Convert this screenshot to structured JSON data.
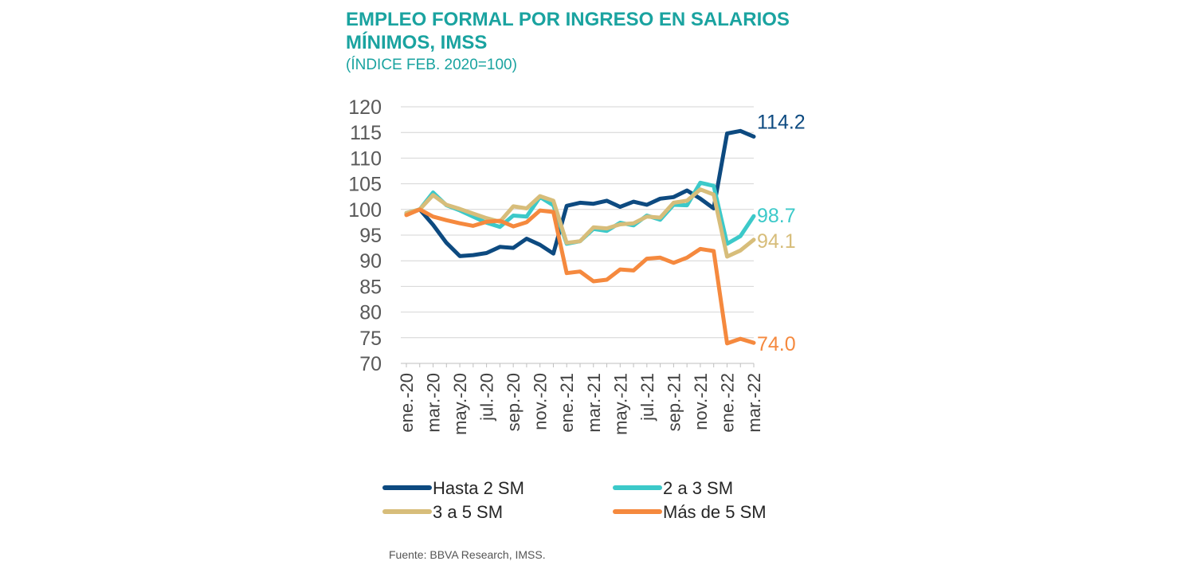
{
  "title": "EMPLEO FORMAL POR INGRESO EN SALARIOS MÍNIMOS, IMSS",
  "subtitle": "(ÍNDICE FEB. 2020=100)",
  "source": "Fuente: BBVA Research, IMSS.",
  "chart_data": {
    "type": "line",
    "title": "EMPLEO FORMAL POR INGRESO EN SALARIOS MÍNIMOS, IMSS",
    "subtitle": "(ÍNDICE FEB. 2020=100)",
    "ylim": [
      70,
      120
    ],
    "yticks": [
      "70",
      "75",
      "80",
      "85",
      "90",
      "95",
      "100",
      "105",
      "110",
      "115",
      "120"
    ],
    "grid": "horizontal",
    "legend_position": "bottom",
    "x": [
      "ene.-20",
      "feb.-20",
      "mar.-20",
      "abr.-20",
      "may.-20",
      "jun.-20",
      "jul.-20",
      "ago.-20",
      "sep.-20",
      "oct.-20",
      "nov.-20",
      "dic.-20",
      "ene.-21",
      "feb.-21",
      "mar.-21",
      "abr.-21",
      "may.-21",
      "jun.-21",
      "jul.-21",
      "ago.-21",
      "sep.-21",
      "oct.-21",
      "nov.-21",
      "dic.-21",
      "ene.-22",
      "feb.-22",
      "mar.-22"
    ],
    "xtick_labels": [
      "ene.-20",
      "mar.-20",
      "may.-20",
      "jul.-20",
      "sep.-20",
      "nov.-20",
      "ene.-21",
      "mar.-21",
      "may.-21",
      "jul.-21",
      "sep.-21",
      "nov.-21",
      "ene.-22",
      "mar.-22"
    ],
    "series": [
      {
        "name": "Hasta 2 SM",
        "color": "#0d4a80",
        "end_label": "114.2",
        "values": [
          99.2,
          100,
          97.0,
          93.5,
          90.9,
          91.1,
          91.5,
          92.7,
          92.5,
          94.3,
          93.1,
          91.4,
          100.7,
          101.3,
          101.1,
          101.7,
          100.5,
          101.5,
          100.9,
          102.1,
          102.4,
          103.7,
          102.1,
          100.2,
          114.8,
          115.3,
          114.2
        ]
      },
      {
        "name": "2 a 3 SM",
        "color": "#3cc9c9",
        "end_label": "98.7",
        "values": [
          99.3,
          100,
          103.3,
          100.8,
          99.8,
          98.6,
          97.4,
          96.6,
          98.8,
          98.6,
          102.4,
          100.8,
          93.3,
          93.8,
          96.2,
          95.8,
          97.4,
          96.9,
          98.8,
          98.0,
          100.9,
          100.8,
          105.2,
          104.6,
          93.3,
          94.8,
          98.7
        ]
      },
      {
        "name": "3 a 5 SM",
        "color": "#d7bd7a",
        "end_label": "94.1",
        "values": [
          99.3,
          100,
          102.8,
          100.9,
          100.1,
          99.2,
          98.3,
          97.6,
          100.6,
          100.2,
          102.6,
          101.7,
          93.5,
          93.8,
          96.5,
          96.3,
          97.1,
          97.3,
          98.6,
          98.4,
          101.3,
          101.7,
          103.9,
          102.9,
          90.8,
          92.0,
          94.1
        ]
      },
      {
        "name": "Más de 5 SM",
        "color": "#f5893e",
        "end_label": "74.0",
        "values": [
          98.9,
          100,
          98.6,
          97.9,
          97.3,
          96.8,
          97.6,
          97.8,
          96.7,
          97.5,
          99.8,
          99.5,
          87.6,
          87.9,
          86.0,
          86.3,
          88.3,
          88.1,
          90.4,
          90.6,
          89.6,
          90.6,
          92.3,
          91.9,
          73.9,
          74.8,
          74.0
        ]
      }
    ]
  }
}
